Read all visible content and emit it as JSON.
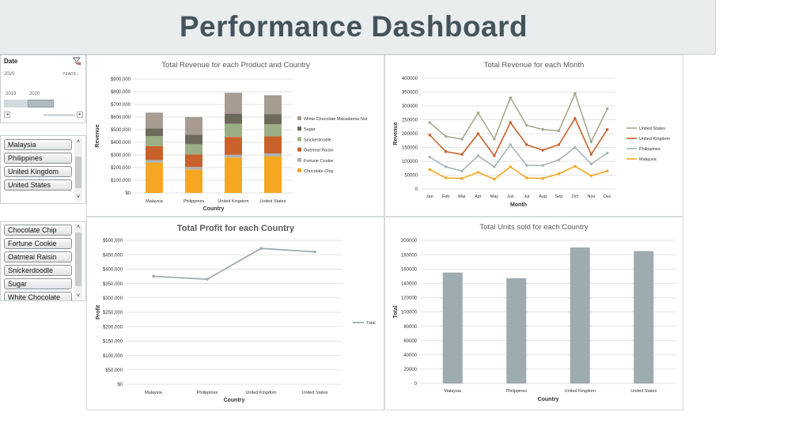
{
  "header": {
    "title": "Performance Dashboard"
  },
  "timeline": {
    "field": "Date",
    "year": "2020",
    "level": "YEARS",
    "years": [
      "2019",
      "2020"
    ],
    "selected": "2020"
  },
  "country_slicer": {
    "items": [
      "Malaysia",
      "Philippines",
      "United Kingdom",
      "United States"
    ]
  },
  "product_slicer": {
    "items": [
      "Chocolate Chip",
      "Fortune Cookie",
      "Oatmeal Raisin",
      "Snickerdoodle",
      "Sugar",
      "White Chocolate"
    ]
  },
  "colors": {
    "white_chocolate": "#a69c92",
    "sugar": "#6e6a5b",
    "snickerdoodle": "#9cae85",
    "oatmeal_raisin": "#c8622a",
    "fortune_cookie": "#a9b3b8",
    "chocolate_chip": "#f5a623",
    "series_grey": "#9eabb0"
  },
  "chart_data": [
    {
      "type": "bar",
      "stacked": true,
      "title": "Total Revenue for each Product and Country",
      "xlabel": "Country",
      "ylabel": "Revenue",
      "categories": [
        "Malaysia",
        "Philippines",
        "United Kingdom",
        "United States"
      ],
      "ylim": [
        0,
        900000
      ],
      "yticks": [
        "$0",
        "$100,000",
        "$200,000",
        "$300,000",
        "$400,000",
        "$500,000",
        "$600,000",
        "$700,000",
        "$800,000",
        "$900,000"
      ],
      "series": [
        {
          "name": "Chocolate Chip",
          "values": [
            240000,
            185000,
            280000,
            290000
          ]
        },
        {
          "name": "Fortune Cookie",
          "values": [
            20000,
            20000,
            22000,
            22000
          ]
        },
        {
          "name": "Oatmeal Raisin",
          "values": [
            110000,
            100000,
            140000,
            135000
          ]
        },
        {
          "name": "Snickerdoodle",
          "values": [
            80000,
            80000,
            105000,
            95000
          ]
        },
        {
          "name": "Sugar",
          "values": [
            60000,
            75000,
            80000,
            80000
          ]
        },
        {
          "name": "White Chocolate Macadamia Nut",
          "values": [
            125000,
            140000,
            165000,
            150000
          ]
        }
      ],
      "legend": "right",
      "grid": true
    },
    {
      "type": "line",
      "title": "Total Revenue for each Month",
      "xlabel": "Month",
      "ylabel": "Revenue",
      "categories": [
        "Jan",
        "Feb",
        "Mar",
        "Apr",
        "May",
        "Jun",
        "Jul",
        "Aug",
        "Sep",
        "Oct",
        "Nov",
        "Dec"
      ],
      "ylim": [
        0,
        400000
      ],
      "yticks": [
        "0",
        "50000",
        "100000",
        "150000",
        "200000",
        "250000",
        "300000",
        "350000",
        "400000"
      ],
      "series": [
        {
          "name": "United States",
          "values": [
            240000,
            190000,
            180000,
            275000,
            180000,
            330000,
            230000,
            215000,
            210000,
            345000,
            170000,
            290000
          ]
        },
        {
          "name": "United Kingdom",
          "values": [
            195000,
            135000,
            125000,
            200000,
            120000,
            240000,
            160000,
            140000,
            160000,
            255000,
            125000,
            215000
          ]
        },
        {
          "name": "Philippines",
          "values": [
            115000,
            80000,
            65000,
            120000,
            80000,
            160000,
            85000,
            85000,
            105000,
            150000,
            90000,
            130000
          ]
        },
        {
          "name": "Malaysia",
          "values": [
            70000,
            40000,
            38000,
            60000,
            35000,
            80000,
            40000,
            38000,
            55000,
            82000,
            48000,
            65000
          ]
        }
      ],
      "legend": "right",
      "grid": true
    },
    {
      "type": "line",
      "title": "Total Profit for each Country",
      "xlabel": "Country",
      "ylabel": "Profit",
      "categories": [
        "Malaysia",
        "Philippines",
        "United Kingdom",
        "United States"
      ],
      "ylim": [
        0,
        500000
      ],
      "yticks": [
        "$0",
        "$50,000",
        "$100,000",
        "$150,000",
        "$200,000",
        "$250,000",
        "$300,000",
        "$350,000",
        "$400,000",
        "$450,000",
        "$500,000"
      ],
      "series": [
        {
          "name": "Total",
          "values": [
            375000,
            365000,
            472000,
            460000
          ]
        }
      ],
      "legend": "right",
      "grid": true
    },
    {
      "type": "bar",
      "title": "Total Units sold for each Country",
      "xlabel": "Country",
      "ylabel": "Total",
      "categories": [
        "Malaysia",
        "Philippines",
        "United Kingdom",
        "United States"
      ],
      "ylim": [
        0,
        200000
      ],
      "yticks": [
        "0",
        "20000",
        "40000",
        "60000",
        "80000",
        "100000",
        "120000",
        "140000",
        "160000",
        "180000",
        "200000"
      ],
      "values": [
        155000,
        147000,
        190000,
        185000
      ],
      "grid": true
    }
  ]
}
